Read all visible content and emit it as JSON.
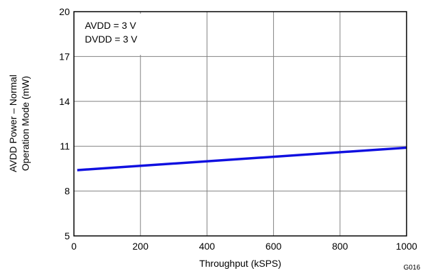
{
  "chart_data": {
    "type": "line",
    "title": "",
    "xlabel": "Throughput (kSPS)",
    "ylabel": [
      "AVDD Power – Normal",
      "Operation Mode (mW)"
    ],
    "xlim": [
      0,
      1000
    ],
    "ylim": [
      5,
      20
    ],
    "x_ticks": [
      0,
      200,
      400,
      600,
      800,
      1000
    ],
    "y_ticks": [
      5,
      8,
      11,
      14,
      17,
      20
    ],
    "grid": true,
    "annotations": [
      "AVDD = 3 V",
      "DVDD = 3 V"
    ],
    "figure_id": "G016",
    "series": [
      {
        "color": "#1010e0",
        "x": [
          10,
          1000
        ],
        "y": [
          9.4,
          10.9
        ]
      }
    ]
  }
}
